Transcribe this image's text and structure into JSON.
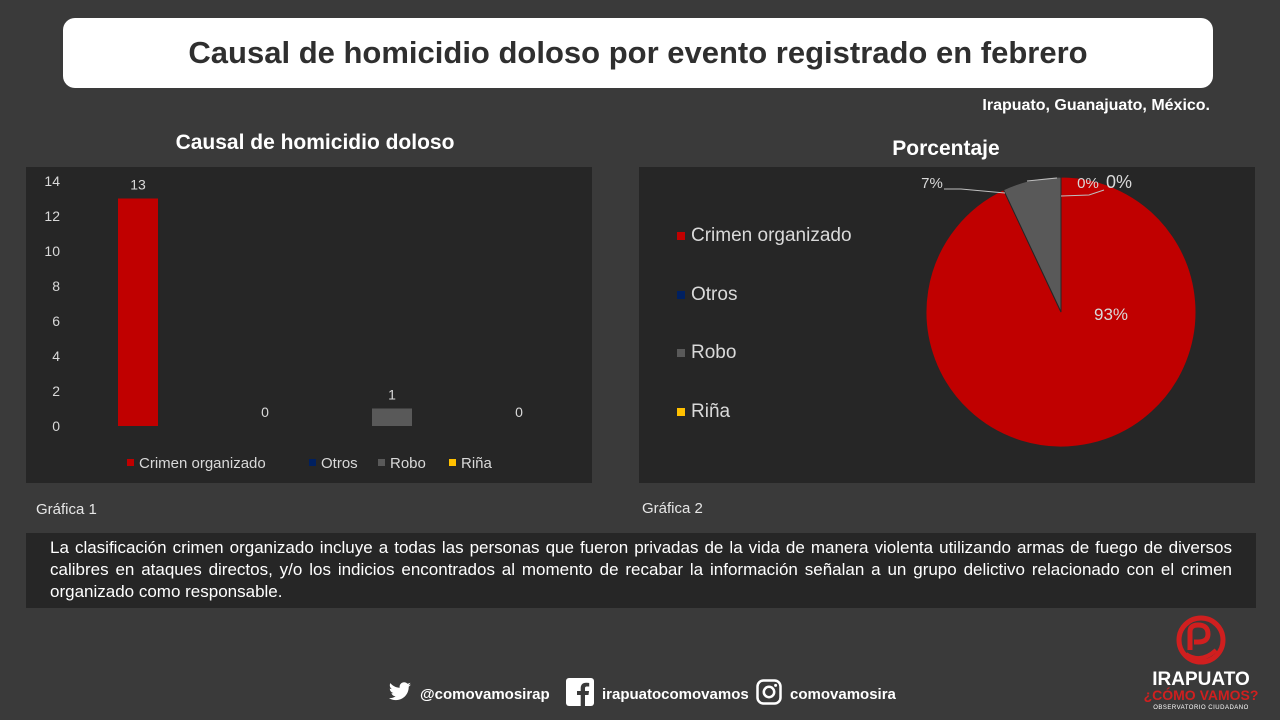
{
  "header": {
    "title": "Causal de homicidio doloso por evento registrado en febrero",
    "location": "Irapuato, Guanajuato, México."
  },
  "chart1": {
    "title": "Causal de homicidio doloso",
    "caption": "Gráfica 1"
  },
  "chart2": {
    "title": "Porcentaje",
    "caption": "Gráfica 2"
  },
  "note": "La clasificación crimen organizado incluye a todas las personas que fueron privadas de la vida de manera violenta utilizando armas de fuego de diversos calibres en ataques directos, y/o los indicios encontrados al momento de recabar la información señalan a un grupo delictivo relacionado con el crimen organizado como responsable.",
  "footer": {
    "twitter": "@comovamosirap",
    "facebook": "irapuatocomovamos",
    "instagram": "comovamosira",
    "logo_line1": "IRAPUATO",
    "logo_line2": "¿CÓMO VAMOS?",
    "logo_line3": "OBSERVATORIO CIUDADANO",
    "icons": [
      "twitter-icon",
      "facebook-icon",
      "instagram-icon"
    ]
  },
  "colors": {
    "background": "#3a3a3a",
    "panel": "#262626",
    "crimen": "#c00000",
    "otros": "#002060",
    "robo": "#595959",
    "rina": "#ffc000",
    "accent_red": "#d01f1f"
  },
  "chart_data": [
    {
      "type": "bar",
      "title": "Causal de homicidio doloso",
      "categories": [
        "Crimen organizado",
        "Otros",
        "Robo",
        "Riña"
      ],
      "values": [
        13,
        0,
        1,
        0
      ],
      "data_labels": [
        "13",
        "0",
        "1",
        "0"
      ],
      "colors": [
        "#c00000",
        "#002060",
        "#595959",
        "#ffc000"
      ],
      "yticks": [
        "0",
        "2",
        "4",
        "6",
        "8",
        "10",
        "12",
        "14"
      ],
      "ylim": [
        0,
        14
      ],
      "legend": "bottom",
      "grid": false
    },
    {
      "type": "pie",
      "title": "Porcentaje",
      "categories": [
        "Crimen organizado",
        "Otros",
        "Robo",
        "Riña"
      ],
      "values": [
        93,
        0,
        7,
        0
      ],
      "data_labels": [
        "93%",
        "0%",
        "7%",
        "0%"
      ],
      "colors": [
        "#c00000",
        "#002060",
        "#595959",
        "#ffc000"
      ],
      "legend": "left"
    }
  ]
}
